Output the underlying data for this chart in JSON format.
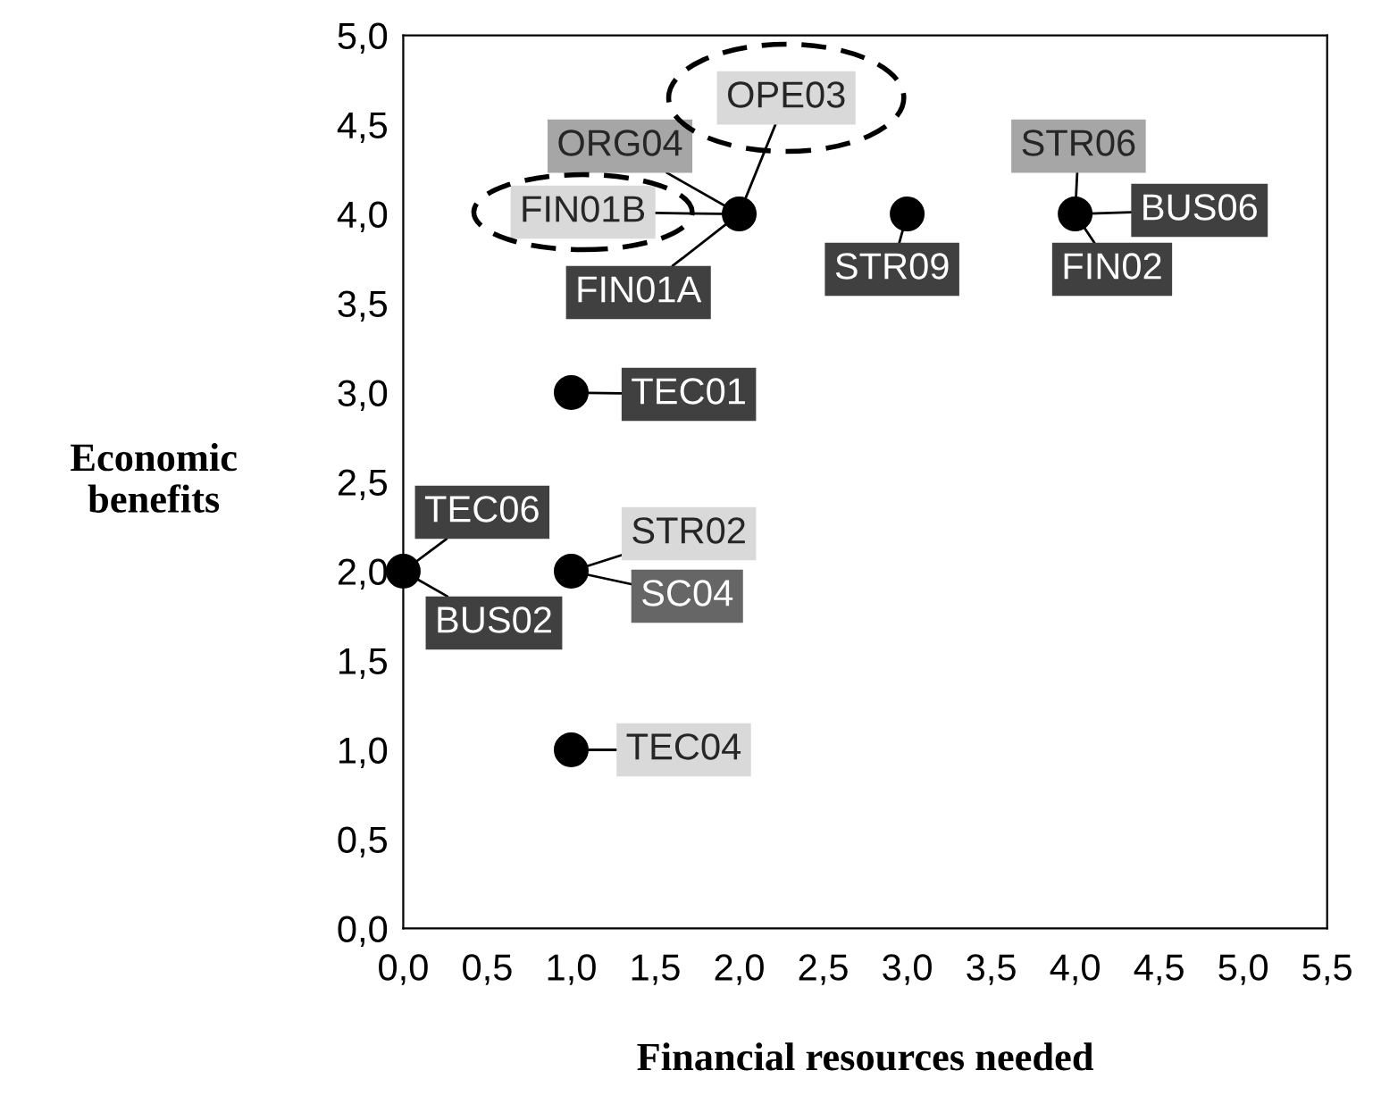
{
  "chart_data": {
    "type": "scatter",
    "xlabel": "Financial resources needed",
    "ylabel": "Economic benefits",
    "x": [
      0,
      1,
      1,
      1,
      2,
      3,
      4
    ],
    "series": [
      {
        "color": "#000000",
        "values": [
          2,
          2,
          1,
          3,
          4,
          4,
          4
        ]
      }
    ],
    "marker": "circle",
    "grid": false,
    "legend": false,
    "xlim": [
      0,
      5.5
    ],
    "xticks": [
      {
        "value": 0,
        "label": "0,0"
      },
      {
        "value": 0.5,
        "label": "0,5"
      },
      {
        "value": 1,
        "label": "1,0"
      },
      {
        "value": 1.5,
        "label": "1,5"
      },
      {
        "value": 2,
        "label": "2,0"
      },
      {
        "value": 2.5,
        "label": "2,5"
      },
      {
        "value": 3,
        "label": "3,0"
      },
      {
        "value": 3.5,
        "label": "3,5"
      },
      {
        "value": 4,
        "label": "4,0"
      },
      {
        "value": 4.5,
        "label": "4,5"
      },
      {
        "value": 5,
        "label": "5,0"
      },
      {
        "value": 5.5,
        "label": "5,5"
      }
    ],
    "ylim": [
      0,
      5
    ],
    "yticks": [
      {
        "value": 0,
        "label": "0,0"
      },
      {
        "value": 0.5,
        "label": "0,5"
      },
      {
        "value": 1,
        "label": "1,0"
      },
      {
        "value": 1.5,
        "label": "1,5"
      },
      {
        "value": 2,
        "label": "2,0"
      },
      {
        "value": 2.5,
        "label": "2,5"
      },
      {
        "value": 3,
        "label": "3,0"
      },
      {
        "value": 3.5,
        "label": "3,5"
      },
      {
        "value": 4,
        "label": "4,0"
      },
      {
        "value": 4.5,
        "label": "4,5"
      },
      {
        "value": 5,
        "label": "5,0"
      }
    ],
    "annotations": [
      {
        "text": "OPE03",
        "x": 2,
        "y": 4
      },
      {
        "text": "ORG04",
        "x": 2,
        "y": 4
      },
      {
        "text": "FIN01B",
        "x": 2,
        "y": 4
      },
      {
        "text": "FIN01A",
        "x": 2,
        "y": 4
      },
      {
        "text": "STR06",
        "x": 4,
        "y": 4
      },
      {
        "text": "BUS06",
        "x": 4,
        "y": 4
      },
      {
        "text": "STR09",
        "x": 3,
        "y": 4
      },
      {
        "text": "FIN02",
        "x": 4,
        "y": 4
      },
      {
        "text": "TEC01",
        "x": 1,
        "y": 3
      },
      {
        "text": "TEC06",
        "x": 0,
        "y": 2
      },
      {
        "text": "STR02",
        "x": 1,
        "y": 2
      },
      {
        "text": "SC04",
        "x": 1,
        "y": 2
      },
      {
        "text": "BUS02",
        "x": 0,
        "y": 2
      },
      {
        "text": "TEC04",
        "x": 1,
        "y": 1
      }
    ]
  }
}
